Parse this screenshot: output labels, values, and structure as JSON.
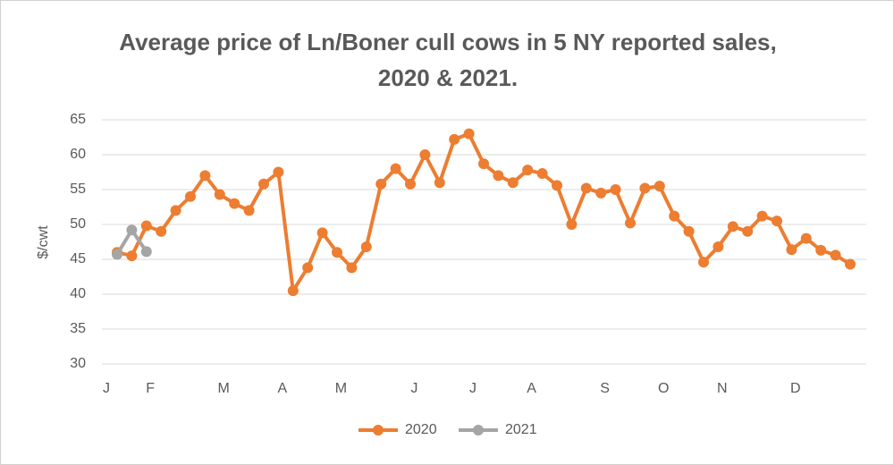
{
  "chart_data": {
    "type": "line",
    "title": "Average price of Ln/Boner cull cows in 5 NY reported sales, 2020 & 2021.",
    "y_label": "$/cwt",
    "categories": [
      "J",
      null,
      null,
      "F",
      null,
      null,
      null,
      null,
      "M",
      null,
      null,
      null,
      "A",
      null,
      null,
      null,
      "M",
      null,
      null,
      null,
      null,
      "J",
      null,
      null,
      null,
      "J",
      null,
      null,
      null,
      "A",
      null,
      null,
      null,
      null,
      "S",
      null,
      null,
      null,
      "O",
      null,
      null,
      null,
      "N",
      null,
      null,
      null,
      null,
      "D",
      null,
      null,
      null
    ],
    "series": [
      {
        "name": "2020",
        "color": "#ed7d31",
        "values": [
          46,
          45.5,
          49.8,
          49,
          52,
          54,
          57,
          54.3,
          53,
          52,
          55.8,
          57.5,
          40.5,
          43.8,
          48.8,
          46,
          43.8,
          46.8,
          55.8,
          58,
          55.8,
          60,
          56,
          62.2,
          63,
          58.7,
          57,
          56,
          57.8,
          57.3,
          55.6,
          50,
          55.2,
          54.5,
          55,
          50.2,
          55.2,
          55.5,
          51.2,
          49,
          44.6,
          46.8,
          49.7,
          49,
          51.2,
          50.5,
          46.4,
          48,
          46.3,
          45.6,
          44.3
        ]
      },
      {
        "name": "2021",
        "color": "#a5a5a5",
        "values": [
          45.7,
          49.2,
          46.1,
          null,
          null,
          null,
          null,
          null,
          null,
          null,
          null,
          null,
          null,
          null,
          null,
          null,
          null,
          null,
          null,
          null,
          null,
          null,
          null,
          null,
          null,
          null,
          null,
          null,
          null,
          null,
          null,
          null,
          null,
          null,
          null,
          null,
          null,
          null,
          null,
          null,
          null,
          null,
          null,
          null,
          null,
          null,
          null,
          null,
          null,
          null,
          null
        ]
      }
    ],
    "ylim": [
      30,
      65
    ],
    "yticks": [
      30,
      35,
      40,
      45,
      50,
      55,
      60,
      65
    ],
    "grid": true,
    "legend": "bottom"
  }
}
